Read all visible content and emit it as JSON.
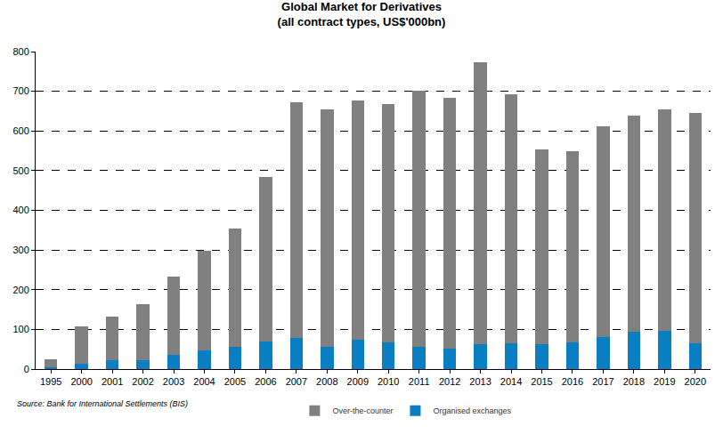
{
  "chart_data": {
    "type": "bar",
    "title": "Global Market for Derivatives",
    "subtitle": "(all contract types, US$'000bn)",
    "source": "Source: Bank for International Settlements (BIS)",
    "categories": [
      "1995",
      "2000",
      "2001",
      "2002",
      "2003",
      "2004",
      "2005",
      "2006",
      "2007",
      "2008",
      "2009",
      "2010",
      "2011",
      "2012",
      "2013",
      "2014",
      "2015",
      "2016",
      "2017",
      "2018",
      "2019",
      "2020"
    ],
    "series": [
      {
        "name": "Organised exchanges",
        "color": "#0a7ec2",
        "values": [
          5,
          13,
          22,
          22,
          36,
          46,
          57,
          69,
          79,
          57,
          73,
          67,
          57,
          52,
          63,
          64,
          63,
          67,
          81,
          94,
          97,
          65
        ]
      },
      {
        "name": "Over-the-counter",
        "color": "#808080",
        "values": [
          19,
          94,
          111,
          141,
          196,
          251,
          296,
          416,
          594,
          598,
          603,
          601,
          645,
          631,
          710,
          629,
          491,
          481,
          530,
          544,
          557,
          581
        ]
      }
    ],
    "stacked": true,
    "ylim": [
      0,
      800
    ],
    "yticks": [
      0,
      100,
      200,
      300,
      400,
      500,
      600,
      700,
      800
    ],
    "grid": true,
    "legend": "bottom"
  }
}
